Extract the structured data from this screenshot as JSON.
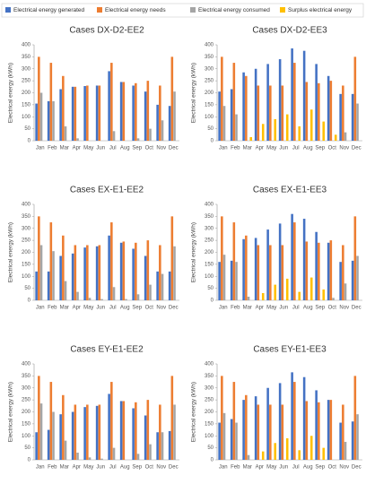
{
  "legend": {
    "series": [
      {
        "name": "Electrical energy generated",
        "color": "#4472c4"
      },
      {
        "name": "Electrical energy needs",
        "color": "#ed7d31"
      },
      {
        "name": "Electrical energy consumed",
        "color": "#a5a5a5"
      },
      {
        "name": "Surplus electrical energy",
        "color": "#ffc000"
      }
    ]
  },
  "chart_data": [
    {
      "type": "bar",
      "title": "Cases DX-D2-EE2",
      "ylabel": "Electrical energy (kWh)",
      "categories": [
        "Jan",
        "Feb",
        "Mar",
        "Apr",
        "May",
        "Jun",
        "Jul",
        "Aug",
        "Sep",
        "Oct",
        "Nov",
        "Dec"
      ],
      "ylim": [
        0,
        400
      ],
      "yticks": [
        0,
        50,
        100,
        150,
        200,
        250,
        300,
        350,
        400
      ],
      "series": [
        {
          "values": [
            155,
            165,
            215,
            225,
            228,
            230,
            290,
            245,
            230,
            205,
            150,
            145
          ]
        },
        {
          "values": [
            350,
            325,
            270,
            225,
            230,
            230,
            325,
            245,
            240,
            250,
            230,
            350
          ]
        },
        {
          "values": [
            200,
            165,
            60,
            10,
            0,
            0,
            40,
            0,
            10,
            50,
            85,
            205
          ]
        },
        {
          "values": [
            0,
            0,
            0,
            0,
            0,
            0,
            0,
            0,
            0,
            0,
            0,
            0
          ]
        }
      ]
    },
    {
      "type": "bar",
      "title": "Cases DX-D2-EE3",
      "ylabel": "Electrical energy (kWh)",
      "categories": [
        "Jan",
        "Feb",
        "Mar",
        "Apr",
        "May",
        "Jun",
        "Jul",
        "Aug",
        "Sep",
        "Oct",
        "Nov",
        "Dec"
      ],
      "ylim": [
        0,
        400
      ],
      "yticks": [
        0,
        50,
        100,
        150,
        200,
        250,
        300,
        350,
        400
      ],
      "series": [
        {
          "values": [
            205,
            215,
            285,
            300,
            320,
            340,
            385,
            375,
            320,
            270,
            195,
            195
          ]
        },
        {
          "values": [
            350,
            325,
            270,
            230,
            230,
            230,
            325,
            245,
            240,
            250,
            230,
            350
          ]
        },
        {
          "values": [
            145,
            110,
            0,
            0,
            0,
            0,
            0,
            0,
            0,
            0,
            35,
            155
          ]
        },
        {
          "values": [
            0,
            0,
            15,
            70,
            90,
            110,
            60,
            130,
            80,
            25,
            0,
            0
          ]
        }
      ]
    },
    {
      "type": "bar",
      "title": "Cases EX-E1-EE2",
      "ylabel": "Electrical energy (kWh)",
      "categories": [
        "Jan",
        "Feb",
        "Mar",
        "Apr",
        "May",
        "Jun",
        "Jul",
        "Aug",
        "Sep",
        "Oct",
        "Nov",
        "Dec"
      ],
      "ylim": [
        0,
        400
      ],
      "yticks": [
        0,
        50,
        100,
        150,
        200,
        250,
        300,
        350,
        400
      ],
      "series": [
        {
          "values": [
            120,
            120,
            185,
            195,
            220,
            225,
            270,
            240,
            215,
            185,
            120,
            120
          ]
        },
        {
          "values": [
            350,
            325,
            270,
            230,
            230,
            230,
            325,
            245,
            240,
            250,
            230,
            350
          ]
        },
        {
          "values": [
            230,
            205,
            80,
            35,
            10,
            5,
            55,
            5,
            25,
            65,
            110,
            225
          ]
        },
        {
          "values": [
            0,
            0,
            0,
            0,
            0,
            0,
            0,
            0,
            0,
            0,
            0,
            0
          ]
        }
      ]
    },
    {
      "type": "bar",
      "title": "Cases EX-E1-EE3",
      "ylabel": "Electrical energy (kWh)",
      "categories": [
        "Jan",
        "Feb",
        "Mar",
        "Apr",
        "May",
        "Jun",
        "Jul",
        "Aug",
        "Sep",
        "Oct",
        "Nov",
        "Dec"
      ],
      "ylim": [
        0,
        400
      ],
      "yticks": [
        0,
        50,
        100,
        150,
        200,
        250,
        300,
        350,
        400
      ],
      "series": [
        {
          "values": [
            160,
            165,
            255,
            260,
            295,
            320,
            360,
            340,
            285,
            240,
            160,
            165
          ]
        },
        {
          "values": [
            350,
            325,
            270,
            230,
            230,
            230,
            325,
            245,
            240,
            250,
            230,
            350
          ]
        },
        {
          "values": [
            190,
            160,
            15,
            0,
            0,
            0,
            0,
            0,
            0,
            10,
            70,
            185
          ]
        },
        {
          "values": [
            0,
            0,
            0,
            30,
            65,
            90,
            35,
            95,
            45,
            0,
            0,
            0
          ]
        }
      ]
    },
    {
      "type": "bar",
      "title": "Cases EY-E1-EE2",
      "ylabel": "Electrical energy (kWh)",
      "categories": [
        "Jan",
        "Feb",
        "Mar",
        "Apr",
        "May",
        "Jun",
        "Jul",
        "Aug",
        "Sep",
        "Oct",
        "Nov",
        "Dec"
      ],
      "ylim": [
        0,
        400
      ],
      "yticks": [
        0,
        50,
        100,
        150,
        200,
        250,
        300,
        350,
        400
      ],
      "series": [
        {
          "values": [
            115,
            125,
            190,
            200,
            220,
            225,
            275,
            245,
            215,
            185,
            115,
            120
          ]
        },
        {
          "values": [
            350,
            325,
            270,
            230,
            230,
            230,
            325,
            245,
            240,
            250,
            230,
            350
          ]
        },
        {
          "values": [
            235,
            200,
            80,
            30,
            10,
            5,
            50,
            0,
            25,
            65,
            115,
            230
          ]
        },
        {
          "values": [
            0,
            0,
            0,
            0,
            0,
            0,
            0,
            0,
            0,
            0,
            0,
            0
          ]
        }
      ]
    },
    {
      "type": "bar",
      "title": "Cases EY-E1-EE3",
      "ylabel": "Electrical energy (kWh)",
      "categories": [
        "Jan",
        "Feb",
        "Mar",
        "Apr",
        "May",
        "Jun",
        "Jul",
        "Aug",
        "Sep",
        "Oct",
        "Nov",
        "Dec"
      ],
      "ylim": [
        0,
        400
      ],
      "yticks": [
        0,
        50,
        100,
        150,
        200,
        250,
        300,
        350,
        400
      ],
      "series": [
        {
          "values": [
            155,
            170,
            250,
            265,
            300,
            320,
            365,
            345,
            290,
            250,
            155,
            160
          ]
        },
        {
          "values": [
            350,
            325,
            270,
            230,
            230,
            230,
            325,
            245,
            240,
            250,
            230,
            350
          ]
        },
        {
          "values": [
            195,
            155,
            20,
            0,
            0,
            0,
            0,
            0,
            0,
            0,
            75,
            190
          ]
        },
        {
          "values": [
            0,
            0,
            0,
            35,
            70,
            90,
            40,
            100,
            50,
            0,
            0,
            0
          ]
        }
      ]
    }
  ]
}
